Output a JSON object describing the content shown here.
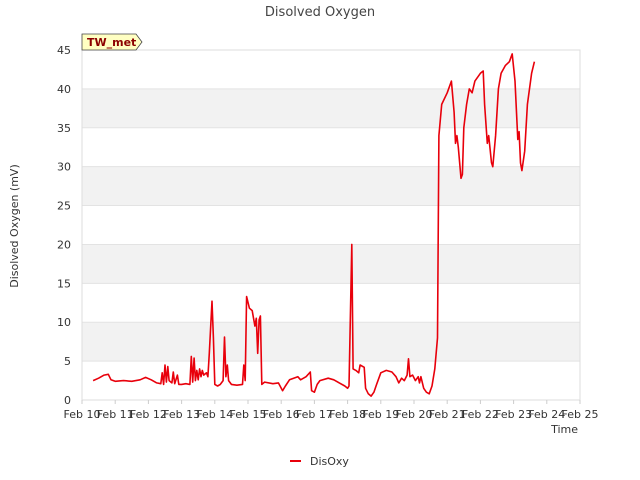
{
  "chart_data": {
    "type": "line",
    "title": "Disolved Oxygen",
    "xlabel": "Time",
    "ylabel": "Disolved Oxygen (mV)",
    "station_label": "TW_met",
    "x_range_days": [
      "Feb 10",
      "Feb 25"
    ],
    "ylim": [
      0,
      45
    ],
    "x_ticks": [
      "Feb 10",
      "Feb 11",
      "Feb 12",
      "Feb 13",
      "Feb 14",
      "Feb 15",
      "Feb 16",
      "Feb 17",
      "Feb 18",
      "Feb 19",
      "Feb 20",
      "Feb 21",
      "Feb 22",
      "Feb 23",
      "Feb 24",
      "Feb 25"
    ],
    "y_ticks": [
      0,
      5,
      10,
      15,
      20,
      25,
      30,
      35,
      40,
      45
    ],
    "grid": true,
    "band_fill_color": "#f2f2f2",
    "legend_position": "bottom-center",
    "series": [
      {
        "name": "DisOxy",
        "color": "#e8000b",
        "points": [
          [
            "Feb 10 08:00",
            2.5
          ],
          [
            "Feb 10 12:00",
            2.8
          ],
          [
            "Feb 10 16:00",
            3.2
          ],
          [
            "Feb 10 19:00",
            3.3
          ],
          [
            "Feb 10 21:00",
            2.6
          ],
          [
            "Feb 11 00:00",
            2.4
          ],
          [
            "Feb 11 06:00",
            2.5
          ],
          [
            "Feb 11 12:00",
            2.4
          ],
          [
            "Feb 11 18:00",
            2.6
          ],
          [
            "Feb 11 22:00",
            2.9
          ],
          [
            "Feb 12 02:00",
            2.6
          ],
          [
            "Feb 12 06:00",
            2.2
          ],
          [
            "Feb 12 09:00",
            2.1
          ],
          [
            "Feb 12 10:00",
            3.5
          ],
          [
            "Feb 12 11:00",
            2.0
          ],
          [
            "Feb 12 12:00",
            4.5
          ],
          [
            "Feb 12 13:00",
            2.3
          ],
          [
            "Feb 12 14:00",
            4.3
          ],
          [
            "Feb 12 15:00",
            2.5
          ],
          [
            "Feb 12 17:00",
            2.2
          ],
          [
            "Feb 12 18:00",
            3.6
          ],
          [
            "Feb 12 19:00",
            2.1
          ],
          [
            "Feb 12 21:00",
            3.2
          ],
          [
            "Feb 12 22:00",
            2.0
          ],
          [
            "Feb 13 00:00",
            2.0
          ],
          [
            "Feb 13 03:00",
            2.1
          ],
          [
            "Feb 13 06:00",
            2.0
          ],
          [
            "Feb 13 07:00",
            5.6
          ],
          [
            "Feb 13 08:00",
            2.3
          ],
          [
            "Feb 13 09:00",
            5.4
          ],
          [
            "Feb 13 10:00",
            2.5
          ],
          [
            "Feb 13 11:00",
            3.8
          ],
          [
            "Feb 13 12:00",
            2.6
          ],
          [
            "Feb 13 13:00",
            4.0
          ],
          [
            "Feb 13 14:00",
            3.0
          ],
          [
            "Feb 13 15:00",
            3.8
          ],
          [
            "Feb 13 16:00",
            3.2
          ],
          [
            "Feb 13 18:00",
            3.5
          ],
          [
            "Feb 13 19:00",
            3.0
          ],
          [
            "Feb 13 20:00",
            6.0
          ],
          [
            "Feb 13 22:00",
            12.7
          ],
          [
            "Feb 13 23:00",
            8.0
          ],
          [
            "Feb 14 00:00",
            2.0
          ],
          [
            "Feb 14 02:00",
            1.8
          ],
          [
            "Feb 14 04:00",
            2.0
          ],
          [
            "Feb 14 06:00",
            2.5
          ],
          [
            "Feb 14 07:00",
            8.1
          ],
          [
            "Feb 14 08:00",
            3.0
          ],
          [
            "Feb 14 09:00",
            4.5
          ],
          [
            "Feb 14 10:00",
            2.5
          ],
          [
            "Feb 14 12:00",
            2.0
          ],
          [
            "Feb 14 16:00",
            1.9
          ],
          [
            "Feb 14 20:00",
            2.0
          ],
          [
            "Feb 14 21:00",
            4.5
          ],
          [
            "Feb 14 22:00",
            2.5
          ],
          [
            "Feb 14 23:00",
            13.3
          ],
          [
            "Feb 15 01:00",
            11.8
          ],
          [
            "Feb 15 03:00",
            11.5
          ],
          [
            "Feb 15 05:00",
            9.5
          ],
          [
            "Feb 15 06:00",
            10.5
          ],
          [
            "Feb 15 07:00",
            6.0
          ],
          [
            "Feb 15 08:00",
            10.3
          ],
          [
            "Feb 15 09:00",
            10.8
          ],
          [
            "Feb 15 10:00",
            2.0
          ],
          [
            "Feb 15 12:00",
            2.3
          ],
          [
            "Feb 15 18:00",
            2.1
          ],
          [
            "Feb 15 22:00",
            2.2
          ],
          [
            "Feb 16 01:00",
            1.2
          ],
          [
            "Feb 16 03:00",
            1.8
          ],
          [
            "Feb 16 06:00",
            2.6
          ],
          [
            "Feb 16 12:00",
            3.0
          ],
          [
            "Feb 16 14:00",
            2.6
          ],
          [
            "Feb 16 18:00",
            3.0
          ],
          [
            "Feb 16 21:00",
            3.6
          ],
          [
            "Feb 16 22:00",
            1.2
          ],
          [
            "Feb 17 00:00",
            1.0
          ],
          [
            "Feb 17 02:00",
            2.0
          ],
          [
            "Feb 17 04:00",
            2.5
          ],
          [
            "Feb 17 10:00",
            2.8
          ],
          [
            "Feb 17 14:00",
            2.6
          ],
          [
            "Feb 17 18:00",
            2.2
          ],
          [
            "Feb 17 22:00",
            1.8
          ],
          [
            "Feb 18 00:00",
            1.5
          ],
          [
            "Feb 18 01:00",
            1.8
          ],
          [
            "Feb 18 03:00",
            20.0
          ],
          [
            "Feb 18 04:00",
            4.0
          ],
          [
            "Feb 18 06:00",
            3.8
          ],
          [
            "Feb 18 08:00",
            3.5
          ],
          [
            "Feb 18 09:00",
            4.5
          ],
          [
            "Feb 18 12:00",
            4.2
          ],
          [
            "Feb 18 13:00",
            1.5
          ],
          [
            "Feb 18 15:00",
            0.8
          ],
          [
            "Feb 18 17:00",
            0.5
          ],
          [
            "Feb 18 19:00",
            1.0
          ],
          [
            "Feb 18 21:00",
            2.0
          ],
          [
            "Feb 19 00:00",
            3.5
          ],
          [
            "Feb 19 04:00",
            3.8
          ],
          [
            "Feb 19 08:00",
            3.6
          ],
          [
            "Feb 19 11:00",
            3.0
          ],
          [
            "Feb 19 13:00",
            2.2
          ],
          [
            "Feb 19 15:00",
            2.8
          ],
          [
            "Feb 19 17:00",
            2.5
          ],
          [
            "Feb 19 19:00",
            3.2
          ],
          [
            "Feb 19 20:00",
            5.3
          ],
          [
            "Feb 19 21:00",
            3.0
          ],
          [
            "Feb 19 23:00",
            3.2
          ],
          [
            "Feb 20 01:00",
            2.5
          ],
          [
            "Feb 20 03:00",
            3.0
          ],
          [
            "Feb 20 04:00",
            2.2
          ],
          [
            "Feb 20 05:00",
            3.0
          ],
          [
            "Feb 20 07:00",
            1.5
          ],
          [
            "Feb 20 09:00",
            1.0
          ],
          [
            "Feb 20 11:00",
            0.8
          ],
          [
            "Feb 20 13:00",
            1.8
          ],
          [
            "Feb 20 15:00",
            4.0
          ],
          [
            "Feb 20 17:00",
            8.0
          ],
          [
            "Feb 20 18:00",
            34.0
          ],
          [
            "Feb 20 20:00",
            38.0
          ],
          [
            "Feb 21 00:00",
            39.5
          ],
          [
            "Feb 21 03:00",
            41.0
          ],
          [
            "Feb 21 05:00",
            37.0
          ],
          [
            "Feb 21 06:00",
            33.0
          ],
          [
            "Feb 21 07:00",
            34.0
          ],
          [
            "Feb 21 08:00",
            32.5
          ],
          [
            "Feb 21 10:00",
            28.5
          ],
          [
            "Feb 21 11:00",
            29.0
          ],
          [
            "Feb 21 12:00",
            35.0
          ],
          [
            "Feb 21 14:00",
            38.0
          ],
          [
            "Feb 21 16:00",
            40.0
          ],
          [
            "Feb 21 18:00",
            39.5
          ],
          [
            "Feb 21 20:00",
            41.0
          ],
          [
            "Feb 22 00:00",
            42.0
          ],
          [
            "Feb 22 02:00",
            42.3
          ],
          [
            "Feb 22 03:00",
            38.0
          ],
          [
            "Feb 22 05:00",
            33.0
          ],
          [
            "Feb 22 06:00",
            34.0
          ],
          [
            "Feb 22 08:00",
            30.5
          ],
          [
            "Feb 22 09:00",
            30.0
          ],
          [
            "Feb 22 11:00",
            34.0
          ],
          [
            "Feb 22 13:00",
            40.0
          ],
          [
            "Feb 22 15:00",
            42.0
          ],
          [
            "Feb 22 18:00",
            43.0
          ],
          [
            "Feb 22 21:00",
            43.5
          ],
          [
            "Feb 22 23:00",
            44.5
          ],
          [
            "Feb 23 01:00",
            41.0
          ],
          [
            "Feb 23 03:00",
            33.5
          ],
          [
            "Feb 23 04:00",
            34.5
          ],
          [
            "Feb 23 05:00",
            30.5
          ],
          [
            "Feb 23 06:00",
            29.5
          ],
          [
            "Feb 23 08:00",
            32.0
          ],
          [
            "Feb 23 10:00",
            38.0
          ],
          [
            "Feb 23 13:00",
            42.0
          ],
          [
            "Feb 23 15:00",
            43.5
          ]
        ]
      }
    ]
  }
}
